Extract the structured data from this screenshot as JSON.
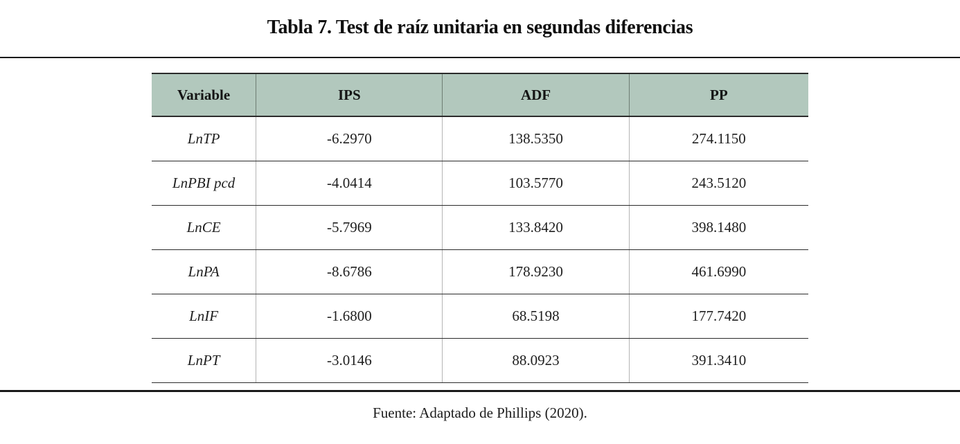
{
  "page": {
    "title": "Tabla 7. Test de raíz unitaria en segundas diferencias",
    "source_note": "Fuente: Adaptado de Phillips (2020)."
  },
  "colors": {
    "header_bg": "#b2c8bd",
    "rule": "#1a1a1a",
    "row_separator": "#2b2b2b",
    "column_separator": "#b4b4b4"
  },
  "table": {
    "columns": [
      "Variable",
      "IPS",
      "ADF",
      "PP"
    ],
    "rows": [
      [
        "LnTP",
        "-6.2970",
        "138.5350",
        "274.1150"
      ],
      [
        "LnPBI pcd",
        "-4.0414",
        "103.5770",
        "243.5120"
      ],
      [
        "LnCE",
        "-5.7969",
        "133.8420",
        "398.1480"
      ],
      [
        "LnPA",
        "-8.6786",
        "178.9230",
        "461.6990"
      ],
      [
        "LnIF",
        "-1.6800",
        "68.5198",
        "177.7420"
      ],
      [
        "LnPT",
        "-3.0146",
        "88.0923",
        "391.3410"
      ]
    ]
  },
  "chart_data": {
    "type": "table",
    "title": "Tabla 7. Test de raíz unitaria en segundas diferencias",
    "columns": [
      "Variable",
      "IPS",
      "ADF",
      "PP"
    ],
    "rows": [
      {
        "variable": "LnTP",
        "ips": -6.297,
        "adf": 138.535,
        "pp": 274.115
      },
      {
        "variable": "LnPBI pcd",
        "ips": -4.0414,
        "adf": 103.577,
        "pp": 243.512
      },
      {
        "variable": "LnCE",
        "ips": -5.7969,
        "adf": 133.842,
        "pp": 398.148
      },
      {
        "variable": "LnPA",
        "ips": -8.6786,
        "adf": 178.923,
        "pp": 461.699
      },
      {
        "variable": "LnIF",
        "ips": -1.68,
        "adf": 68.5198,
        "pp": 177.742
      },
      {
        "variable": "LnPT",
        "ips": -3.0146,
        "adf": 88.0923,
        "pp": 391.341
      }
    ],
    "source": "Fuente: Adaptado de Phillips (2020)."
  }
}
